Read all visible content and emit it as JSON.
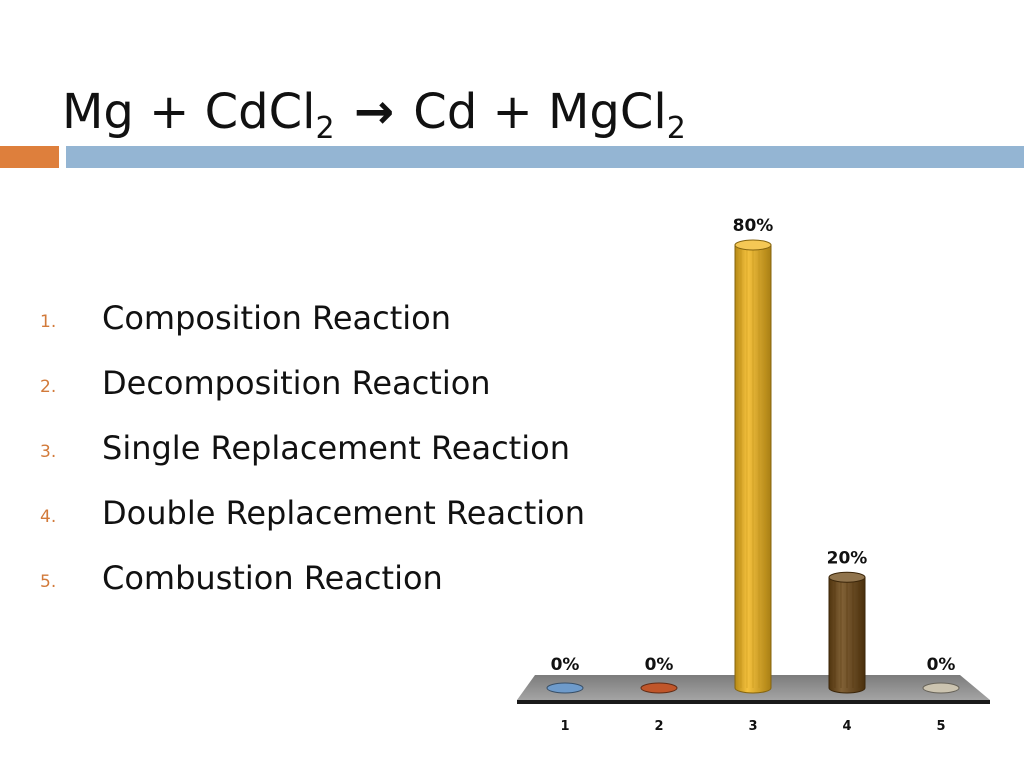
{
  "slide": {
    "title": {
      "part1": "Mg + CdCl",
      "sub1": "2",
      "arrow": "→",
      "part2": "Cd + MgCl",
      "sub2": "2"
    },
    "options": [
      {
        "number": "1.",
        "label": "Composition Reaction"
      },
      {
        "number": "2.",
        "label": "Decomposition Reaction"
      },
      {
        "number": "3.",
        "label": "Single Replacement Reaction"
      },
      {
        "number": "4.",
        "label": "Double Replacement Reaction"
      },
      {
        "number": "5.",
        "label": "Combustion Reaction"
      }
    ],
    "colors": {
      "accent_orange": "#DE7F3C",
      "accent_blue": "#94B5D3"
    }
  },
  "chart_data": {
    "type": "bar",
    "title": "",
    "xlabel": "",
    "ylabel": "",
    "categories": [
      "1",
      "2",
      "3",
      "4",
      "5"
    ],
    "values": [
      0,
      0,
      80,
      20,
      0
    ],
    "value_labels": [
      "0%",
      "0%",
      "80%",
      "20%",
      "0%"
    ],
    "ylim": [
      0,
      80
    ],
    "grid": false,
    "legend": "none",
    "colors": [
      "#6E9BCB",
      "#C0562A",
      "#F2B61C",
      "#6B4512",
      "#CCC4B0"
    ]
  }
}
